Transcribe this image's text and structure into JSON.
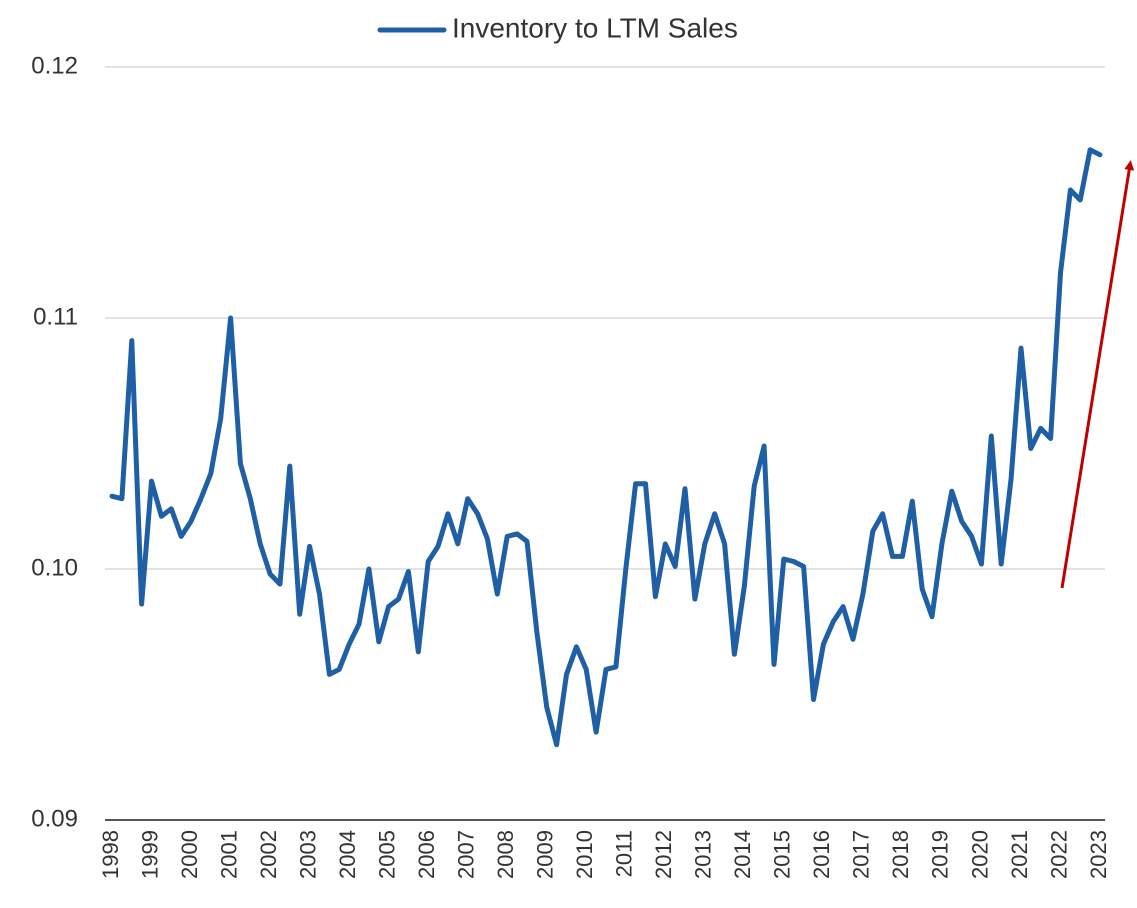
{
  "chart_data": {
    "type": "line",
    "categories": [
      "1998",
      null,
      null,
      null,
      "1999",
      null,
      null,
      null,
      "2000",
      null,
      null,
      null,
      "2001",
      null,
      null,
      null,
      "2002",
      null,
      null,
      null,
      "2003",
      null,
      null,
      null,
      "2004",
      null,
      null,
      null,
      "2005",
      null,
      null,
      null,
      "2006",
      null,
      null,
      null,
      "2007",
      null,
      null,
      null,
      "2008",
      null,
      null,
      null,
      "2009",
      null,
      null,
      null,
      "2010",
      null,
      null,
      null,
      "2011",
      null,
      null,
      null,
      "2012",
      null,
      null,
      null,
      "2013",
      null,
      null,
      null,
      "2014",
      null,
      null,
      null,
      "2015",
      null,
      null,
      null,
      "2016",
      null,
      null,
      null,
      "2017",
      null,
      null,
      null,
      "2018",
      null,
      null,
      null,
      "2019",
      null,
      null,
      null,
      "2020",
      null,
      null,
      null,
      "2021",
      null,
      null,
      null,
      "2022",
      null,
      null,
      null,
      "2023"
    ],
    "series": [
      {
        "name": "Inventory to LTM Sales",
        "color": "#1f5fa6",
        "values": [
          0.1029,
          0.1028,
          0.1091,
          0.0986,
          0.1035,
          0.1021,
          0.1024,
          0.1013,
          0.1019,
          0.1028,
          0.1038,
          0.106,
          0.11,
          0.1042,
          0.1028,
          0.101,
          0.0998,
          0.0994,
          0.1041,
          0.0982,
          0.1009,
          0.099,
          0.0958,
          0.096,
          0.097,
          0.0978,
          0.1,
          0.0971,
          0.0985,
          0.0988,
          0.0999,
          0.0967,
          0.1003,
          0.1009,
          0.1022,
          0.101,
          0.1028,
          0.1022,
          0.1012,
          0.099,
          0.1013,
          0.1014,
          0.1011,
          0.0975,
          0.0945,
          0.093,
          0.0958,
          0.0969,
          0.096,
          0.0935,
          0.096,
          0.0961,
          0.1,
          0.1034,
          0.1034,
          0.0989,
          0.101,
          0.1001,
          0.1032,
          0.0988,
          0.101,
          0.1022,
          0.101,
          0.0966,
          0.0993,
          0.1033,
          0.1049,
          0.0962,
          0.1004,
          0.1003,
          0.1001,
          0.0948,
          0.097,
          0.0979,
          0.0985,
          0.0972,
          0.099,
          0.1015,
          0.1022,
          0.1005,
          0.1005,
          0.1027,
          0.0992,
          0.0981,
          0.101,
          0.1031,
          0.1019,
          0.1013,
          0.1002,
          0.1053,
          0.1002,
          0.1036,
          0.1088,
          0.1048,
          0.1056,
          0.1052,
          0.1118,
          0.1151,
          0.1147,
          0.1167,
          0.1165
        ]
      }
    ],
    "ylim": [
      0.09,
      0.12
    ],
    "yticks": [
      0.09,
      {
        "value": 0.1,
        "label": "0.10"
      },
      0.11,
      0.12
    ],
    "grid": true,
    "legend": "top"
  }
}
